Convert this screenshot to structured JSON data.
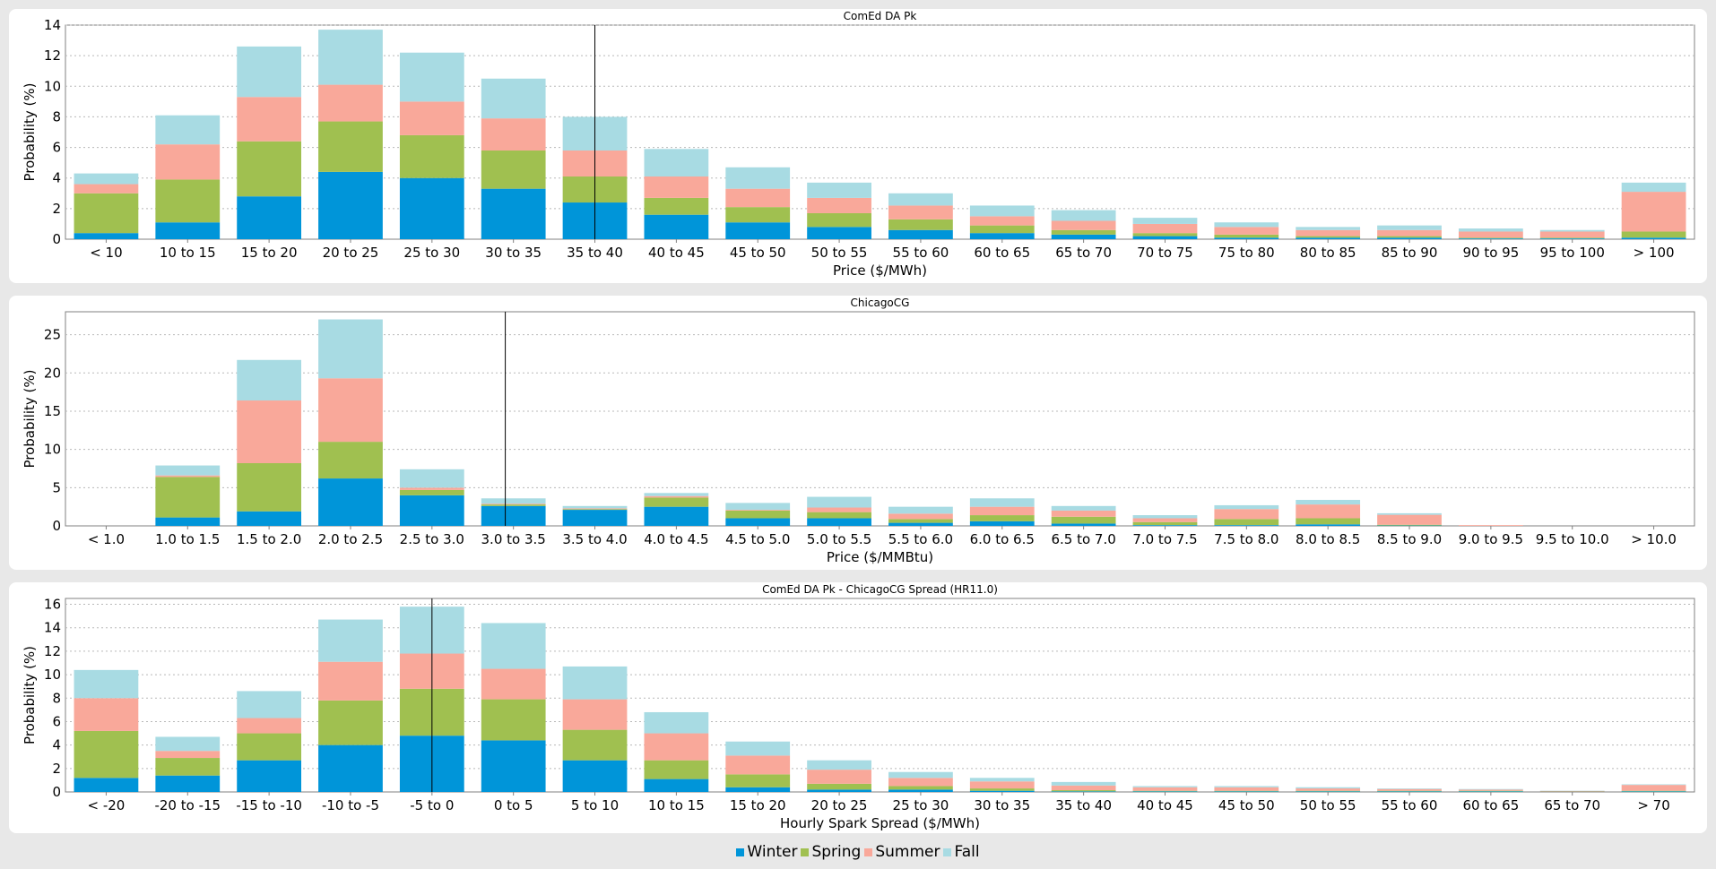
{
  "colors": {
    "Winter": "#0095d9",
    "Spring": "#a0c050",
    "Summer": "#f9a89a",
    "Fall": "#a8dbe3"
  },
  "legend": [
    "Winter",
    "Spring",
    "Summer",
    "Fall"
  ],
  "chart_data": [
    {
      "type": "bar",
      "stacked": true,
      "title": "ComEd DA Pk",
      "xlabel": "Price ($/MWh)",
      "ylabel": "Probability (%)",
      "ylim": [
        0,
        14
      ],
      "yticks": [
        0,
        2,
        4,
        6,
        8,
        10,
        12,
        14
      ],
      "categories": [
        "< 10",
        "10 to 15",
        "15 to 20",
        "20 to 25",
        "25 to 30",
        "30 to 35",
        "35 to 40",
        "40 to 45",
        "45 to 50",
        "50 to 55",
        "55 to 60",
        "60 to 65",
        "65 to 70",
        "70 to 75",
        "75 to 80",
        "80 to 85",
        "85 to 90",
        "90 to 95",
        "95 to 100",
        "> 100"
      ],
      "marker_value": 37.5,
      "series": [
        {
          "name": "Winter",
          "values": [
            0.4,
            1.1,
            2.8,
            4.4,
            4.0,
            3.3,
            2.4,
            1.6,
            1.1,
            0.8,
            0.6,
            0.4,
            0.3,
            0.2,
            0.1,
            0.1,
            0.1,
            0.05,
            0.05,
            0.1
          ]
        },
        {
          "name": "Spring",
          "values": [
            2.6,
            2.8,
            3.6,
            3.3,
            2.8,
            2.5,
            1.7,
            1.1,
            1.0,
            0.9,
            0.7,
            0.5,
            0.3,
            0.2,
            0.2,
            0.1,
            0.1,
            0.05,
            0.05,
            0.4
          ]
        },
        {
          "name": "Summer",
          "values": [
            0.6,
            2.3,
            2.9,
            2.4,
            2.2,
            2.1,
            1.7,
            1.4,
            1.2,
            1.0,
            0.9,
            0.6,
            0.6,
            0.6,
            0.5,
            0.4,
            0.4,
            0.4,
            0.4,
            2.6
          ]
        },
        {
          "name": "Fall",
          "values": [
            0.7,
            1.9,
            3.3,
            3.6,
            3.2,
            2.6,
            2.2,
            1.8,
            1.4,
            1.0,
            0.8,
            0.7,
            0.7,
            0.4,
            0.3,
            0.2,
            0.3,
            0.2,
            0.1,
            0.6
          ]
        }
      ]
    },
    {
      "type": "bar",
      "stacked": true,
      "title": "ChicagoCG",
      "xlabel": "Price ($/MMBtu)",
      "ylabel": "Probability (%)",
      "ylim": [
        0,
        28
      ],
      "yticks": [
        0,
        5,
        10,
        15,
        20,
        25
      ],
      "categories": [
        "< 1.0",
        "1.0 to 1.5",
        "1.5 to 2.0",
        "2.0 to 2.5",
        "2.5 to 3.0",
        "3.0 to 3.5",
        "3.5 to 4.0",
        "4.0 to 4.5",
        "4.5 to 5.0",
        "5.0 to 5.5",
        "5.5 to 6.0",
        "6.0 to 6.5",
        "6.5 to 7.0",
        "7.0 to 7.5",
        "7.5 to 8.0",
        "8.0 to 8.5",
        "8.5 to 9.0",
        "9.0 to 9.5",
        "9.5 to 10.0",
        "> 10.0"
      ],
      "marker_value": 3.2,
      "series": [
        {
          "name": "Winter",
          "values": [
            0,
            1.1,
            1.9,
            6.2,
            4.0,
            2.6,
            2.1,
            2.5,
            1.0,
            1.0,
            0.4,
            0.6,
            0.3,
            0.1,
            0.1,
            0.2,
            0.05,
            0,
            0,
            0
          ]
        },
        {
          "name": "Spring",
          "values": [
            0,
            5.3,
            6.3,
            4.8,
            0.7,
            0.2,
            0.1,
            1.2,
            1.0,
            0.8,
            0.5,
            0.8,
            0.9,
            0.4,
            0.8,
            0.8,
            0.1,
            0,
            0,
            0
          ]
        },
        {
          "name": "Summer",
          "values": [
            0,
            0.2,
            8.2,
            8.3,
            0.3,
            0.1,
            0.1,
            0.2,
            0.1,
            0.6,
            0.7,
            1.1,
            0.8,
            0.5,
            1.3,
            1.8,
            1.3,
            0.1,
            0,
            0
          ]
        },
        {
          "name": "Fall",
          "values": [
            0,
            1.3,
            5.3,
            7.7,
            2.4,
            0.7,
            0.3,
            0.4,
            0.9,
            1.4,
            0.9,
            1.1,
            0.6,
            0.4,
            0.5,
            0.6,
            0.2,
            0,
            0,
            0
          ]
        }
      ]
    },
    {
      "type": "bar",
      "stacked": true,
      "title": "ComEd DA Pk - ChicagoCG Spread (HR11.0)",
      "xlabel": "Hourly Spark Spread ($/MWh)",
      "ylabel": "Probability (%)",
      "ylim": [
        0,
        16.5
      ],
      "yticks": [
        0,
        2,
        4,
        6,
        8,
        10,
        12,
        14,
        16
      ],
      "categories": [
        "< -20",
        "-20 to -15",
        "-15 to -10",
        "-10 to -5",
        "-5 to 0",
        "0 to 5",
        "5 to 10",
        "10 to 15",
        "15 to 20",
        "20 to 25",
        "25 to 30",
        "30 to 35",
        "35 to 40",
        "40 to 45",
        "45 to 50",
        "50 to 55",
        "55 to 60",
        "60 to 65",
        "65 to 70",
        "> 70"
      ],
      "marker_value": -2.5,
      "series": [
        {
          "name": "Winter",
          "values": [
            1.2,
            1.4,
            2.7,
            4.0,
            4.8,
            4.4,
            2.7,
            1.1,
            0.4,
            0.2,
            0.2,
            0.1,
            0.05,
            0.05,
            0.05,
            0.05,
            0.05,
            0.05,
            0.02,
            0.05
          ]
        },
        {
          "name": "Spring",
          "values": [
            4.0,
            1.5,
            2.3,
            3.8,
            4.0,
            3.5,
            2.6,
            1.6,
            1.1,
            0.5,
            0.3,
            0.2,
            0.1,
            0.05,
            0.05,
            0.05,
            0.05,
            0.05,
            0.02,
            0.05
          ]
        },
        {
          "name": "Summer",
          "values": [
            2.8,
            0.6,
            1.3,
            3.3,
            3.0,
            2.6,
            2.6,
            2.3,
            1.6,
            1.2,
            0.7,
            0.6,
            0.4,
            0.3,
            0.3,
            0.2,
            0.15,
            0.1,
            0.05,
            0.5
          ]
        },
        {
          "name": "Fall",
          "values": [
            2.4,
            1.2,
            2.3,
            3.6,
            4.0,
            3.9,
            2.8,
            1.8,
            1.2,
            0.8,
            0.5,
            0.3,
            0.3,
            0.1,
            0.1,
            0.1,
            0.05,
            0.05,
            0.02,
            0.05
          ]
        }
      ]
    }
  ]
}
